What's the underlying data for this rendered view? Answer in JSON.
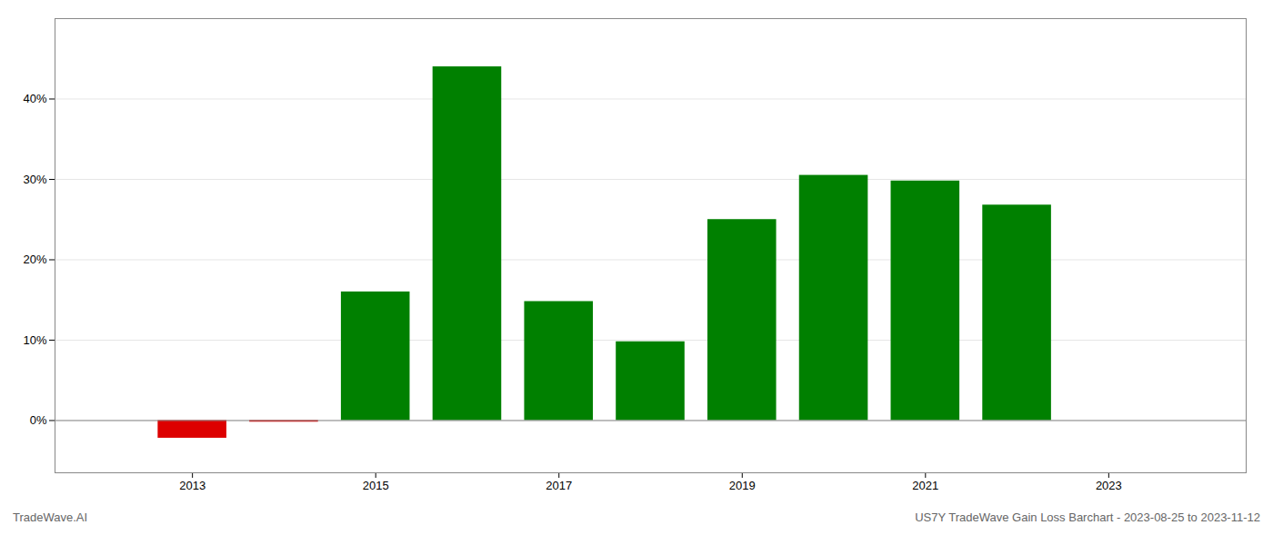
{
  "chart_data": {
    "type": "bar",
    "title": "US7Y TradeWave Gain Loss Barchart - 2023-08-25 to 2023-11-12",
    "annotations": [
      "TradeWave.AI"
    ],
    "x": [
      2013,
      2014,
      2015,
      2016,
      2017,
      2018,
      2019,
      2020,
      2021,
      2022
    ],
    "values": [
      -0.022,
      -0.002,
      0.16,
      0.44,
      0.148,
      0.098,
      0.25,
      0.305,
      0.298,
      0.268
    ],
    "colors": [
      "#dd0000",
      "#dd0000",
      "#008000",
      "#008000",
      "#008000",
      "#008000",
      "#008000",
      "#008000",
      "#008000",
      "#008000"
    ],
    "xlim": [
      2011.5,
      2024.5
    ],
    "xticks": [
      2013,
      2015,
      2017,
      2019,
      2021,
      2023
    ],
    "ylim": [
      -0.065,
      0.5
    ],
    "yticks": [
      {
        "value": 0.0,
        "label": "0%"
      },
      {
        "value": 0.1,
        "label": "10%"
      },
      {
        "value": 0.2,
        "label": "20%"
      },
      {
        "value": 0.3,
        "label": "30%"
      },
      {
        "value": 0.4,
        "label": "40%"
      }
    ],
    "grid": true
  }
}
